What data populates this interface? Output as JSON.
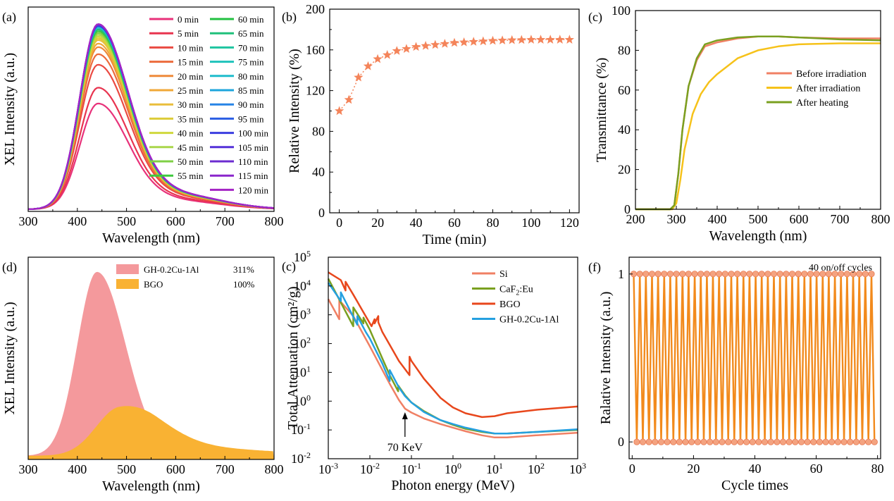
{
  "chart_data": [
    {
      "type": "line",
      "panel_label": "(a)",
      "title": "",
      "xlabel": "Wavelength (nm)",
      "ylabel": "XEL Intensity (a.u.)",
      "xlim": [
        300,
        800
      ],
      "ylim": [
        0,
        1.15
      ],
      "xticks": [
        "300",
        "400",
        "500",
        "600",
        "700",
        "800"
      ],
      "yticks": "none",
      "peak_wavelength": 442,
      "legend_position": "top-right, two columns",
      "series": [
        {
          "name": "0 min",
          "peak": 0.6,
          "color": "#e8327a"
        },
        {
          "name": "5 min",
          "peak": 0.69,
          "color": "#e8344f"
        },
        {
          "name": "10 min",
          "peak": 0.82,
          "color": "#ea4a42"
        },
        {
          "name": "15 min",
          "peak": 0.88,
          "color": "#ec6b3c"
        },
        {
          "name": "20 min",
          "peak": 0.92,
          "color": "#ee8a3a"
        },
        {
          "name": "25 min",
          "peak": 0.94,
          "color": "#f0a838"
        },
        {
          "name": "30 min",
          "peak": 0.96,
          "color": "#e9be3c"
        },
        {
          "name": "35 min",
          "peak": 0.97,
          "color": "#dccb38"
        },
        {
          "name": "40 min",
          "peak": 0.98,
          "color": "#cfd83c"
        },
        {
          "name": "45 min",
          "peak": 0.99,
          "color": "#a9d64a"
        },
        {
          "name": "50 min",
          "peak": 1.0,
          "color": "#7fd046"
        },
        {
          "name": "55 min",
          "peak": 1.01,
          "color": "#3ec93e"
        },
        {
          "name": "60 min",
          "peak": 1.02,
          "color": "#22c040"
        },
        {
          "name": "65 min",
          "peak": 1.02,
          "color": "#1fc07a"
        },
        {
          "name": "70 min",
          "peak": 1.03,
          "color": "#1ec4a0"
        },
        {
          "name": "75 min",
          "peak": 1.03,
          "color": "#1ec3bb"
        },
        {
          "name": "80 min",
          "peak": 1.03,
          "color": "#1ebccc"
        },
        {
          "name": "85 min",
          "peak": 1.04,
          "color": "#1ea6dc"
        },
        {
          "name": "90 min",
          "peak": 1.04,
          "color": "#2784e6"
        },
        {
          "name": "95 min",
          "peak": 1.04,
          "color": "#2b5ee4"
        },
        {
          "name": "100 min",
          "peak": 1.04,
          "color": "#3a3de0"
        },
        {
          "name": "105 min",
          "peak": 1.05,
          "color": "#5430d8"
        },
        {
          "name": "110 min",
          "peak": 1.05,
          "color": "#6c2cd0"
        },
        {
          "name": "115 min",
          "peak": 1.05,
          "color": "#8a26cc"
        },
        {
          "name": "120 min",
          "peak": 1.05,
          "color": "#a424c4"
        }
      ]
    },
    {
      "type": "scatter",
      "panel_label": "(b)",
      "title": "",
      "xlabel": "Time (min)",
      "ylabel": "Relative Intensity (%)",
      "xlim": [
        -5,
        125
      ],
      "ylim": [
        0,
        200
      ],
      "xticks": [
        "0",
        "20",
        "40",
        "60",
        "80",
        "100",
        "120"
      ],
      "yticks": [
        "0",
        "40",
        "80",
        "120",
        "160",
        "200"
      ],
      "marker": "star",
      "color": "#f4845a",
      "x": [
        0,
        5,
        10,
        15,
        20,
        25,
        30,
        35,
        40,
        45,
        50,
        55,
        60,
        65,
        70,
        75,
        80,
        85,
        90,
        95,
        100,
        105,
        110,
        115,
        120
      ],
      "y": [
        100,
        111,
        133,
        144,
        151,
        155,
        159,
        161,
        163,
        164,
        165,
        166,
        167,
        167.5,
        168,
        168.5,
        169,
        169.3,
        169.6,
        169.8,
        170,
        170,
        170,
        170,
        170
      ]
    },
    {
      "type": "line",
      "panel_label": "(c)",
      "title": "",
      "xlabel": "Wavelength (nm)",
      "ylabel": "Transmittance (%)",
      "xlim": [
        200,
        800
      ],
      "ylim": [
        0,
        100
      ],
      "xticks": [
        "200",
        "300",
        "400",
        "500",
        "600",
        "700",
        "800"
      ],
      "yticks": [
        "0",
        "20",
        "40",
        "60",
        "80",
        "100"
      ],
      "legend_position": "center-right",
      "series": [
        {
          "name": "Before irradiation",
          "color": "#f08064",
          "x": [
            200,
            285,
            295,
            305,
            315,
            330,
            350,
            370,
            400,
            450,
            500,
            550,
            600,
            700,
            800
          ],
          "y": [
            0,
            0,
            2,
            18,
            40,
            62,
            75,
            82,
            84,
            86,
            87,
            87,
            86.5,
            86,
            86
          ]
        },
        {
          "name": "After irradiation",
          "color": "#f6c21a",
          "x": [
            200,
            290,
            300,
            310,
            320,
            340,
            360,
            380,
            400,
            450,
            500,
            550,
            600,
            700,
            800
          ],
          "y": [
            0,
            0,
            3,
            15,
            30,
            48,
            58,
            64,
            68,
            76,
            80,
            82,
            83,
            83.5,
            83.5
          ]
        },
        {
          "name": "After heating",
          "color": "#7aa020",
          "x": [
            200,
            285,
            295,
            305,
            315,
            330,
            350,
            370,
            400,
            450,
            500,
            550,
            600,
            700,
            800
          ],
          "y": [
            0,
            0,
            2,
            18,
            40,
            62,
            76,
            83,
            85,
            86.5,
            87,
            87,
            86.5,
            85.5,
            85
          ]
        }
      ]
    },
    {
      "type": "area",
      "panel_label": "(d)",
      "title": "",
      "xlabel": "Wavelength (nm)",
      "ylabel": "XEL Intensity (a.u.)",
      "xlim": [
        300,
        800
      ],
      "ylim": [
        0,
        1.1
      ],
      "xticks": [
        "300",
        "400",
        "500",
        "600",
        "700",
        "800"
      ],
      "yticks": "none",
      "legend_position": "top",
      "series": [
        {
          "name": "GH-0.2Cu-1Al",
          "value_label": "311%",
          "color": "#f4999c",
          "peak_wavelength": 440,
          "peak": 1.0
        },
        {
          "name": "BGO",
          "value_label": "100%",
          "color": "#f9b233",
          "peak_wavelength": 485,
          "peak": 0.25
        }
      ]
    },
    {
      "type": "line",
      "panel_label": "(c)",
      "title": "",
      "xlabel": "Photon energy (MeV)",
      "ylabel": "Total Attenuation (cm²/g)",
      "xscale": "log",
      "yscale": "log",
      "xlim": [
        0.001,
        1000
      ],
      "ylim": [
        0.01,
        100000
      ],
      "xtick_exponents": [
        "-3",
        "-2",
        "-1",
        "0",
        "1",
        "2",
        "3"
      ],
      "ytick_exponents": [
        "-2",
        "-1",
        "0",
        "1",
        "2",
        "3",
        "4",
        "5"
      ],
      "annotation": {
        "text": "70 KeV",
        "x": 0.07
      },
      "legend_position": "top-right",
      "series": [
        {
          "name": "Si",
          "color": "#f08064",
          "x": [
            0.001,
            0.00184,
            0.00184,
            0.004,
            0.01,
            0.02,
            0.03,
            0.05,
            0.07,
            0.1,
            0.2,
            0.5,
            1,
            2,
            5,
            10,
            20,
            100,
            1000
          ],
          "y": [
            3500,
            700,
            3200,
            900,
            80,
            12,
            4,
            1.1,
            0.55,
            0.4,
            0.25,
            0.16,
            0.12,
            0.09,
            0.065,
            0.055,
            0.055,
            0.065,
            0.08
          ]
        },
        {
          "name": "CaF2:Eu",
          "color": "#7aa020",
          "x": [
            0.001,
            0.004,
            0.004,
            0.007,
            0.007,
            0.01,
            0.02,
            0.03,
            0.048,
            0.048,
            0.07,
            0.1,
            0.2,
            0.5,
            1,
            2,
            5,
            10,
            20,
            100,
            1000
          ],
          "y": [
            18000,
            400,
            1800,
            500,
            800,
            300,
            30,
            8,
            2.2,
            3.5,
            1.6,
            0.9,
            0.45,
            0.22,
            0.15,
            0.11,
            0.085,
            0.075,
            0.075,
            0.085,
            0.1
          ]
        },
        {
          "name": "BGO",
          "color": "#e8471c",
          "x": [
            0.001,
            0.002,
            0.0026,
            0.0026,
            0.004,
            0.011,
            0.013,
            0.013,
            0.016,
            0.016,
            0.02,
            0.03,
            0.05,
            0.09,
            0.09,
            0.1,
            0.2,
            0.5,
            1,
            2,
            5,
            10,
            20,
            100,
            1000
          ],
          "y": [
            30000,
            16000,
            7000,
            14000,
            5000,
            400,
            700,
            500,
            900,
            550,
            250,
            90,
            25,
            8,
            35,
            25,
            6,
            1.3,
            0.6,
            0.38,
            0.28,
            0.3,
            0.38,
            0.5,
            0.65
          ]
        },
        {
          "name": "GH-0.2Cu-1Al",
          "color": "#25a0e0",
          "x": [
            0.001,
            0.002,
            0.002,
            0.005,
            0.005,
            0.008,
            0.01,
            0.02,
            0.03,
            0.03,
            0.05,
            0.07,
            0.1,
            0.2,
            0.5,
            1,
            2,
            5,
            10,
            20,
            100,
            1000
          ],
          "y": [
            13000,
            3000,
            6000,
            450,
            900,
            250,
            150,
            20,
            5,
            12,
            3,
            1.5,
            0.9,
            0.42,
            0.22,
            0.16,
            0.12,
            0.09,
            0.075,
            0.075,
            0.085,
            0.105
          ]
        }
      ]
    },
    {
      "type": "line",
      "panel_label": "(f)",
      "title": "",
      "xlabel": "Cycle times",
      "ylabel": "Ralative Intensity (a.u.)",
      "xlim": [
        -1,
        81
      ],
      "ylim": [
        -0.1,
        1.1
      ],
      "xticks": [
        "0",
        "20",
        "40",
        "60",
        "80"
      ],
      "yticks": [
        "0",
        "1"
      ],
      "annotation": {
        "text": "40 on/off cycles"
      },
      "line_color": "#f28a1c",
      "marker_color": "#f4a380",
      "cycles": 40,
      "on_value": 1,
      "off_value": 0
    }
  ]
}
